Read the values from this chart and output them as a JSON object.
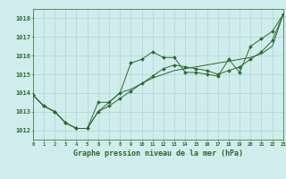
{
  "x": [
    0,
    1,
    2,
    3,
    4,
    5,
    6,
    7,
    8,
    9,
    10,
    11,
    12,
    13,
    14,
    15,
    16,
    17,
    18,
    19,
    20,
    21,
    22,
    23
  ],
  "series1": [
    1013.9,
    1013.3,
    1013.0,
    1012.4,
    1012.1,
    1012.1,
    1013.5,
    1013.5,
    1014.0,
    1015.6,
    1015.8,
    1016.2,
    1015.9,
    1015.9,
    1015.1,
    1015.1,
    1015.0,
    1014.9,
    1015.8,
    1015.1,
    1016.5,
    1016.9,
    1017.3,
    1018.2
  ],
  "series2": [
    1013.9,
    1013.3,
    1013.0,
    1012.4,
    1012.1,
    1012.1,
    1013.0,
    1013.5,
    1014.0,
    1014.2,
    1014.5,
    1014.8,
    1015.0,
    1015.2,
    1015.3,
    1015.4,
    1015.5,
    1015.6,
    1015.7,
    1015.8,
    1015.9,
    1016.1,
    1016.5,
    1018.2
  ],
  "series3": [
    1013.9,
    1013.3,
    1013.0,
    1012.4,
    1012.1,
    1012.1,
    1013.0,
    1013.3,
    1013.7,
    1014.1,
    1014.5,
    1014.9,
    1015.3,
    1015.5,
    1015.4,
    1015.3,
    1015.2,
    1015.0,
    1015.2,
    1015.4,
    1015.8,
    1016.2,
    1016.8,
    1018.2
  ],
  "line_color": "#2d6a2d",
  "bg_color": "#d0ecec",
  "grid_color": "#afd4d4",
  "xlabel": "Graphe pression niveau de la mer (hPa)",
  "xlim": [
    0,
    23
  ],
  "ylim": [
    1011.5,
    1018.5
  ],
  "yticks": [
    1012,
    1013,
    1014,
    1015,
    1016,
    1017,
    1018
  ],
  "xticks": [
    0,
    1,
    2,
    3,
    4,
    5,
    6,
    7,
    8,
    9,
    10,
    11,
    12,
    13,
    14,
    15,
    16,
    17,
    18,
    19,
    20,
    21,
    22,
    23
  ]
}
